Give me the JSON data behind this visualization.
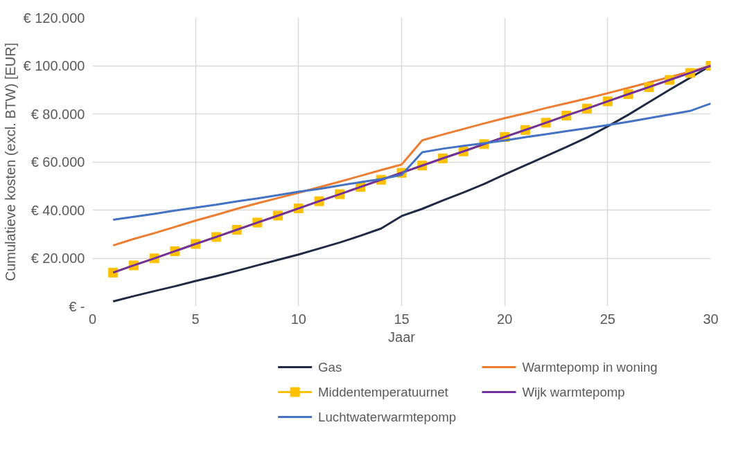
{
  "chart_data": {
    "type": "line",
    "xlabel": "Jaar",
    "ylabel": "Cumulatieve kosten (excl. BTW) [EUR]",
    "x": [
      1,
      2,
      3,
      4,
      5,
      6,
      7,
      8,
      9,
      10,
      11,
      12,
      13,
      14,
      15,
      16,
      17,
      18,
      19,
      20,
      21,
      22,
      23,
      24,
      25,
      26,
      27,
      28,
      29,
      30
    ],
    "xlim": [
      0,
      30
    ],
    "xticks": [
      0,
      5,
      10,
      15,
      20,
      25,
      30
    ],
    "ylim": [
      0,
      120000
    ],
    "yticks": [
      {
        "value": 0,
        "label": "€ -"
      },
      {
        "value": 20000,
        "label": "€ 20.000"
      },
      {
        "value": 40000,
        "label": "€ 40.000"
      },
      {
        "value": 60000,
        "label": "€ 60.000"
      },
      {
        "value": 80000,
        "label": "€ 80.000"
      },
      {
        "value": 100000,
        "label": "€ 100.000"
      },
      {
        "value": 120000,
        "label": "€ 120.000"
      }
    ],
    "grid": true,
    "legend": "bottom",
    "line_style": "solid",
    "series": [
      {
        "name": "Gas",
        "color": "#1f2a44",
        "marker": "none",
        "values": [
          2000,
          4200,
          6300,
          8300,
          10500,
          12500,
          14700,
          17000,
          19300,
          21500,
          24000,
          26500,
          29300,
          32300,
          37500,
          40500,
          44000,
          47300,
          50800,
          54800,
          58600,
          62400,
          66200,
          70200,
          74800,
          79600,
          84800,
          90000,
          95000,
          100000
        ]
      },
      {
        "name": "Warmtepomp in woning",
        "color": "#ed7d31",
        "marker": "none",
        "values": [
          25300,
          28000,
          30400,
          33000,
          35600,
          38000,
          40500,
          42800,
          45000,
          47200,
          49500,
          51800,
          54200,
          56600,
          58900,
          69000,
          71400,
          73700,
          76000,
          78200,
          80200,
          82400,
          84400,
          86400,
          88600,
          90800,
          93000,
          95300,
          97600,
          100000
        ]
      },
      {
        "name": "Middentemperatuurnet",
        "color": "#ffc000",
        "marker": "square",
        "values": [
          14000,
          17000,
          19900,
          22900,
          25900,
          28800,
          31800,
          34800,
          37700,
          40700,
          43700,
          46600,
          49600,
          52600,
          55500,
          58500,
          61500,
          64400,
          67400,
          70400,
          73300,
          76300,
          79300,
          82200,
          85200,
          88200,
          91100,
          94100,
          97000,
          100000
        ]
      },
      {
        "name": "Wijk warmtepomp",
        "color": "#7030a0",
        "marker": "none",
        "values": [
          14000,
          17000,
          19900,
          22900,
          25900,
          28800,
          31800,
          34800,
          37700,
          40700,
          43700,
          46600,
          49600,
          52600,
          55500,
          58500,
          61500,
          64400,
          67400,
          70400,
          73300,
          76300,
          79300,
          82200,
          85200,
          88200,
          91100,
          94100,
          97000,
          100000
        ]
      },
      {
        "name": "Luchtwaterwarmtepomp",
        "color": "#4472c4",
        "marker": "none",
        "values": [
          36000,
          37200,
          38400,
          39800,
          41000,
          42200,
          43600,
          44800,
          46200,
          47600,
          48800,
          50200,
          51600,
          52900,
          54600,
          64000,
          65500,
          66700,
          67800,
          68900,
          70300,
          71500,
          72800,
          74000,
          75300,
          76700,
          78200,
          79700,
          81200,
          84300
        ]
      }
    ]
  }
}
